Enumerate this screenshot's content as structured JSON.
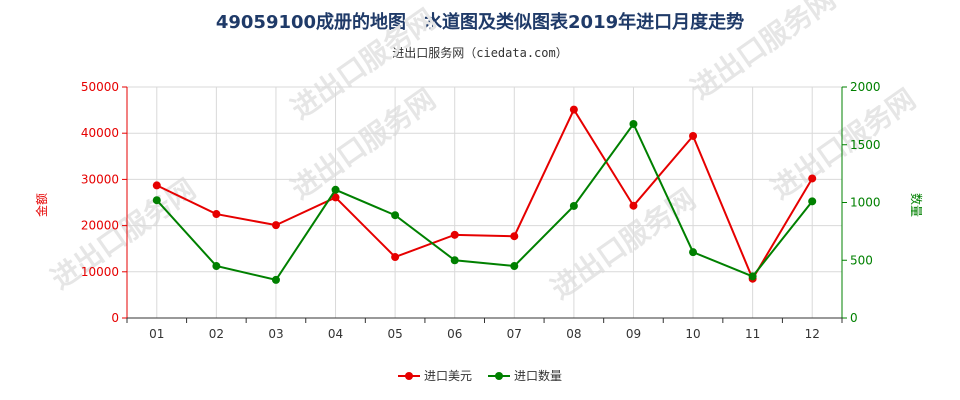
{
  "title": "49059100成册的地图、水道图及类似图表2019年进口月度走势",
  "subtitle": "进出口服务网（ciedata.com）",
  "colors": {
    "usd": "#e60000",
    "qty": "#008000",
    "grid": "#d9d9d9"
  },
  "chart_data": {
    "type": "line",
    "categories": [
      "01",
      "02",
      "03",
      "04",
      "05",
      "06",
      "07",
      "08",
      "09",
      "10",
      "11",
      "12"
    ],
    "y_left": {
      "label": "金额",
      "ylim": [
        0,
        50000
      ],
      "ticks": [
        0,
        10000,
        20000,
        30000,
        40000,
        50000
      ]
    },
    "y_right": {
      "label": "数量",
      "ylim": [
        0,
        2000
      ],
      "ticks": [
        0,
        500,
        1000,
        1500,
        2000
      ]
    },
    "series": [
      {
        "name": "进口美元",
        "axis": "left",
        "values": [
          28700,
          22500,
          20100,
          26100,
          13200,
          18000,
          17700,
          45100,
          24300,
          39400,
          8500,
          30200
        ]
      },
      {
        "name": "进口数量",
        "axis": "right",
        "values": [
          1020,
          450,
          330,
          1110,
          890,
          500,
          450,
          970,
          1680,
          570,
          360,
          1010
        ]
      }
    ],
    "grid": true,
    "legend_position": "bottom-center"
  },
  "watermark": "进出口服务网"
}
